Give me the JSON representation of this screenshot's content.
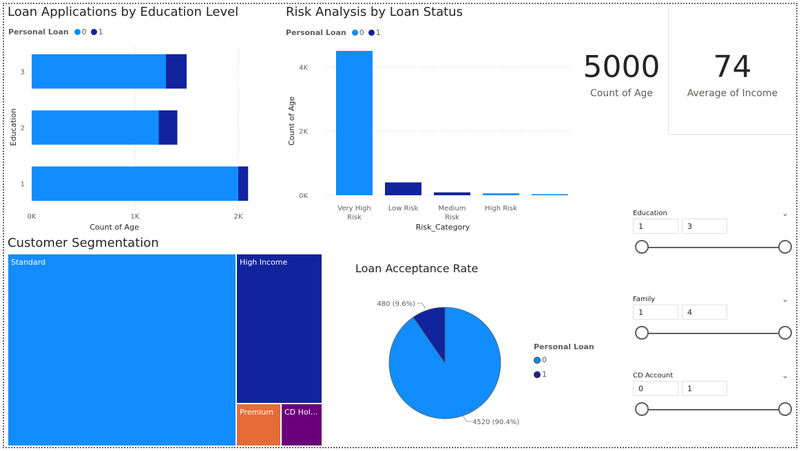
{
  "colors": {
    "loan0": "#118DFF",
    "loan1": "#12239E",
    "premium": "#E66C37",
    "cd": "#6B007B"
  },
  "education_chart": {
    "title": "Loan Applications by Education Level",
    "legend_title": "Personal Loan",
    "legend_items": [
      "0",
      "1"
    ]
  },
  "risk_chart": {
    "title": "Risk Analysis by Loan Status",
    "legend_title": "Personal Loan",
    "legend_items": [
      "0",
      "1"
    ]
  },
  "segmentation": {
    "title": "Customer Segmentation",
    "labels": [
      "Standard",
      "High Income",
      "Premium",
      "CD Hol..."
    ]
  },
  "pie_chart_title": "Loan Acceptance Rate",
  "pie_legend": {
    "title": "Personal Loan",
    "items": [
      "0",
      "1"
    ]
  },
  "cards": [
    {
      "value": "5000",
      "label": "Count of Age"
    },
    {
      "value": "74",
      "label": "Average of Income"
    }
  ],
  "slicers": [
    {
      "title": "Education",
      "min": "1",
      "max": "3"
    },
    {
      "title": "Family",
      "min": "1",
      "max": "4"
    },
    {
      "title": "CD Account",
      "min": "0",
      "max": "1"
    }
  ],
  "chart_data": [
    {
      "type": "bar",
      "orientation": "horizontal",
      "stacked": true,
      "title": "Loan Applications by Education Level",
      "xlabel": "Count of Age",
      "ylabel": "Education",
      "categories": [
        "3",
        "2",
        "1"
      ],
      "series": [
        {
          "name": "0",
          "values": [
            1300,
            1230,
            2000
          ]
        },
        {
          "name": "1",
          "values": [
            200,
            180,
            95
          ]
        }
      ],
      "xlim": [
        0,
        2200
      ],
      "xticks": [
        "0K",
        "1K",
        "2K"
      ],
      "legend": "top-left",
      "grid": true
    },
    {
      "type": "bar",
      "title": "Risk Analysis by Loan Status",
      "xlabel": "Risk_Category",
      "ylabel": "Count of Age",
      "categories": [
        "Very High Risk",
        "Low Risk",
        "Medium Risk",
        "High Risk",
        ""
      ],
      "category_lines": [
        [
          "Very High",
          "Risk"
        ],
        [
          "Low Risk"
        ],
        [
          "Medium",
          "Risk"
        ],
        [
          "High Risk"
        ],
        [
          ""
        ]
      ],
      "series": [
        {
          "name": "0",
          "values": [
            4500,
            0,
            0,
            60,
            35
          ]
        },
        {
          "name": "1",
          "values": [
            0,
            400,
            90,
            0,
            0
          ]
        }
      ],
      "ylim": [
        0,
        4800
      ],
      "yticks": [
        "0K",
        "2K",
        "4K"
      ],
      "legend": "top-left",
      "grid": true
    },
    {
      "type": "treemap",
      "title": "Customer Segmentation",
      "categories": [
        "Standard",
        "High Income",
        "Premium",
        "CD Hol..."
      ],
      "values": [
        3530,
        1160,
        150,
        140
      ]
    },
    {
      "type": "pie",
      "title": "Loan Acceptance Rate",
      "categories": [
        "0",
        "1"
      ],
      "values": [
        4520,
        480
      ],
      "data_labels": [
        "4520 (90.4%)",
        "480 (9.6%)"
      ],
      "legend": "right"
    }
  ]
}
